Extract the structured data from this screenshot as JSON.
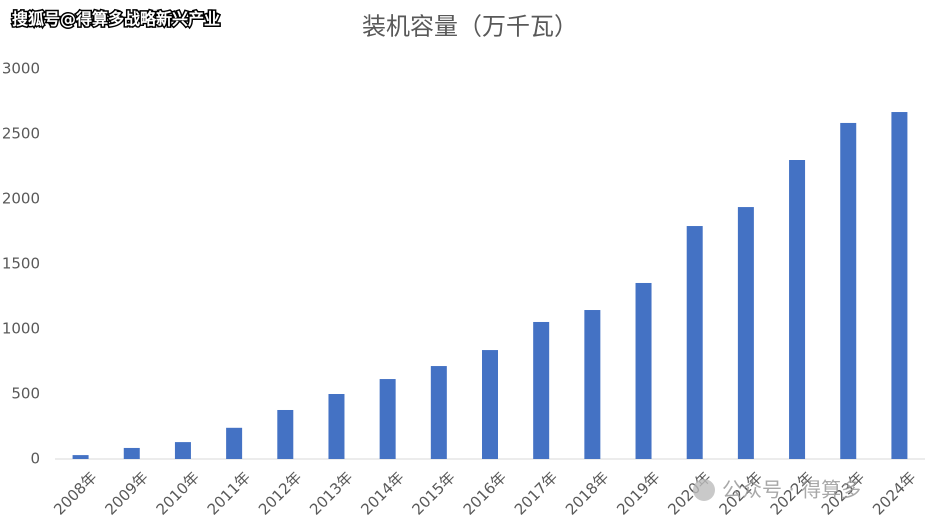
{
  "chart_data": {
    "type": "bar",
    "title": "装机容量（万千瓦）",
    "watermark": "搜狐号@得算多战略新兴产业",
    "watermark_bottom": "公众号 · 得算多",
    "categories": [
      "2008年",
      "2009年",
      "2010年",
      "2011年",
      "2012年",
      "2013年",
      "2014年",
      "2015年",
      "2016年",
      "2017年",
      "2018年",
      "2019年",
      "2020年",
      "2021年",
      "2022年",
      "2023年",
      "2024年"
    ],
    "values": [
      30,
      85,
      130,
      240,
      377,
      500,
      615,
      715,
      838,
      1054,
      1146,
      1354,
      1792,
      1938,
      2300,
      2585,
      2669
    ],
    "color": "#4472c4",
    "ylim": [
      0,
      3000
    ],
    "yticks": [
      0,
      500,
      1000,
      1500,
      2000,
      2500,
      3000
    ],
    "grid": false
  }
}
